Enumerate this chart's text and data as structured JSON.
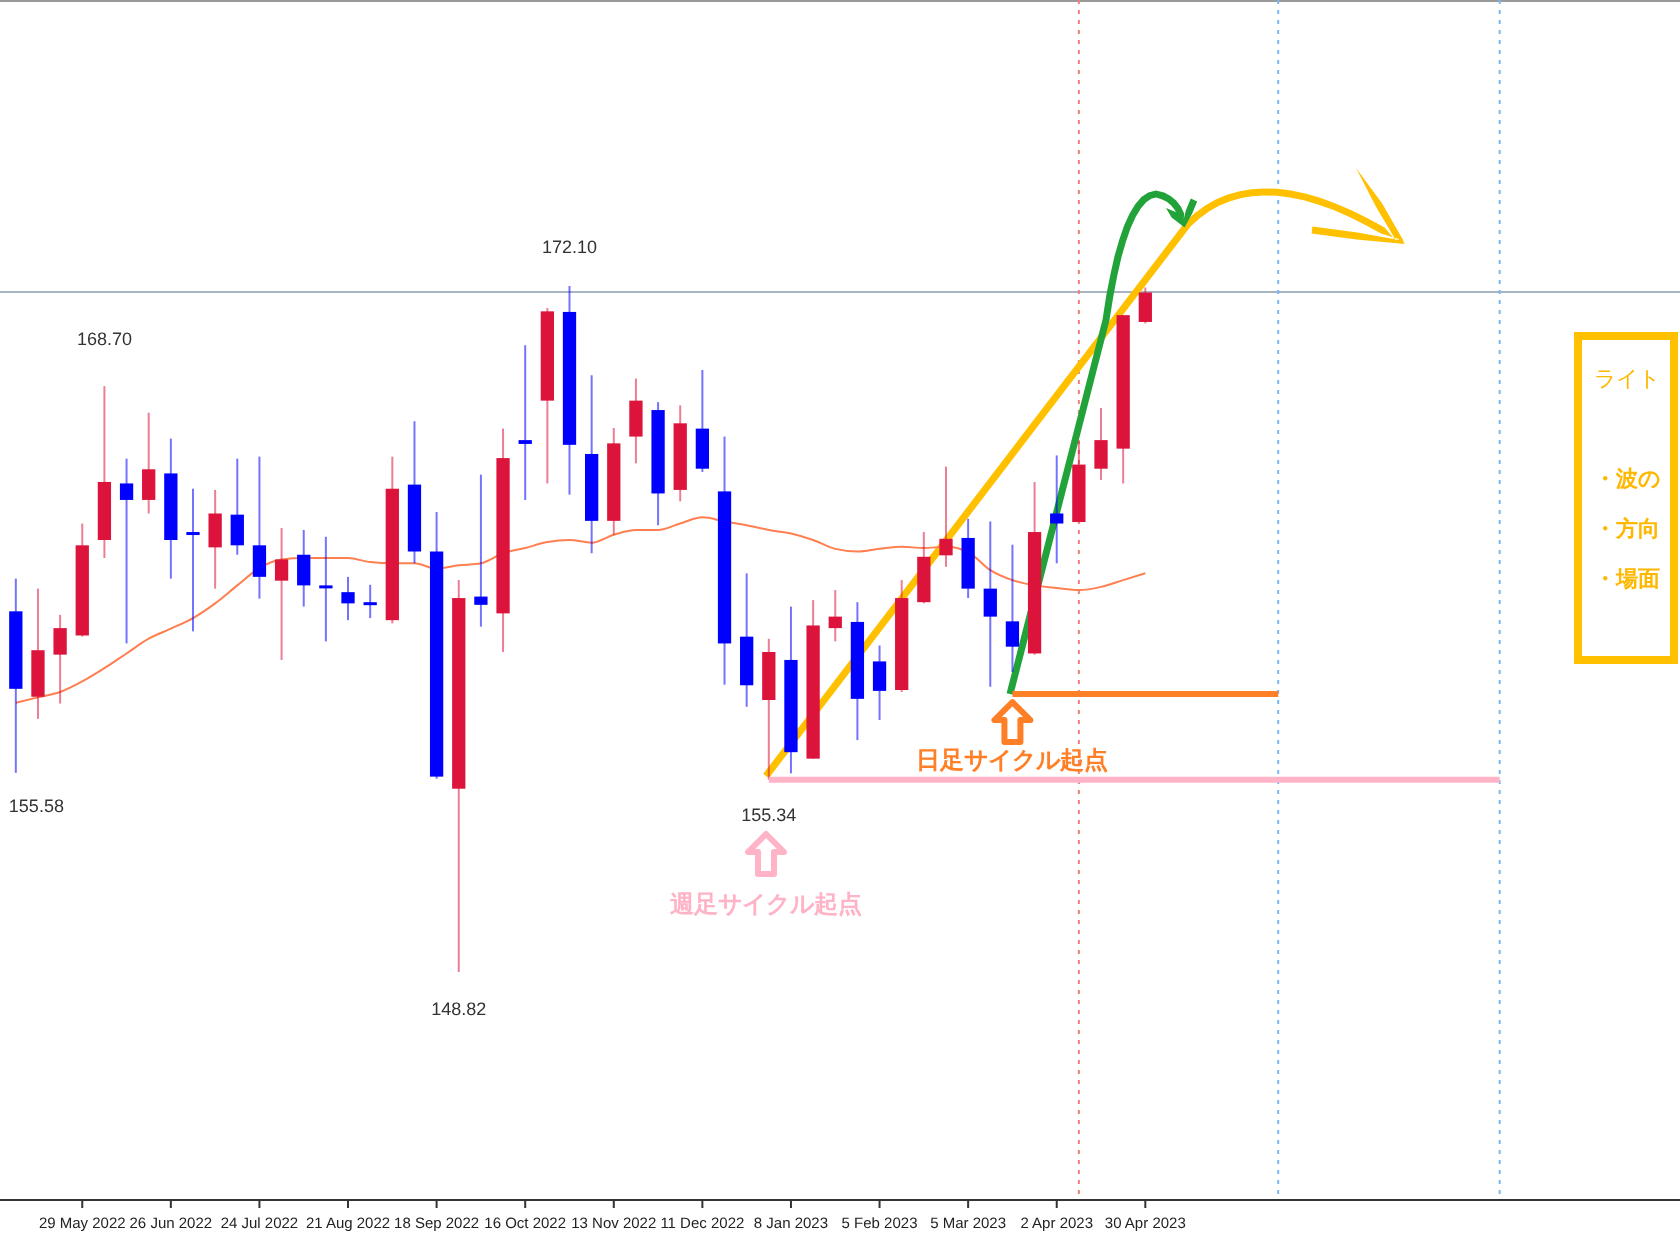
{
  "chart_data": {
    "type": "candlestick",
    "x": [
      "2022-05-08",
      "2022-05-15",
      "2022-05-22",
      "2022-05-29",
      "2022-06-05",
      "2022-06-12",
      "2022-06-19",
      "2022-06-26",
      "2022-07-03",
      "2022-07-10",
      "2022-07-17",
      "2022-07-24",
      "2022-07-31",
      "2022-08-07",
      "2022-08-14",
      "2022-08-21",
      "2022-08-28",
      "2022-09-04",
      "2022-09-11",
      "2022-09-18",
      "2022-09-25",
      "2022-10-02",
      "2022-10-09",
      "2022-10-16",
      "2022-10-23",
      "2022-10-30",
      "2022-11-06",
      "2022-11-13",
      "2022-11-20",
      "2022-11-27",
      "2022-12-04",
      "2022-12-11",
      "2022-12-18",
      "2022-12-25",
      "2023-01-01",
      "2023-01-08",
      "2023-01-15",
      "2023-01-22",
      "2023-01-29",
      "2023-02-05",
      "2023-02-12",
      "2023-02-19",
      "2023-02-26",
      "2023-03-05",
      "2023-03-12",
      "2023-03-19",
      "2023-03-26",
      "2023-04-02",
      "2023-04-09",
      "2023-04-16",
      "2023-04-23",
      "2023-04-30"
    ],
    "ohlc": [
      [
        161.06,
        162.17,
        155.58,
        158.43
      ],
      [
        158.16,
        161.83,
        157.41,
        159.74
      ],
      [
        159.59,
        160.94,
        157.93,
        160.49
      ],
      [
        160.24,
        164.04,
        160.2,
        163.3
      ],
      [
        163.48,
        168.7,
        162.87,
        165.45
      ],
      [
        165.4,
        166.24,
        159.97,
        164.84
      ],
      [
        164.84,
        167.8,
        164.38,
        165.88
      ],
      [
        165.74,
        166.92,
        162.17,
        163.48
      ],
      [
        163.75,
        165.22,
        160.38,
        163.66
      ],
      [
        163.23,
        165.18,
        161.83,
        164.38
      ],
      [
        164.34,
        166.24,
        162.98,
        163.3
      ],
      [
        163.3,
        166.31,
        161.49,
        162.23
      ],
      [
        162.1,
        163.89,
        159.41,
        162.82
      ],
      [
        162.98,
        163.82,
        161.22,
        161.94
      ],
      [
        161.94,
        163.59,
        160.04,
        161.85
      ],
      [
        161.71,
        162.23,
        160.76,
        161.33
      ],
      [
        161.37,
        161.96,
        160.83,
        161.28
      ],
      [
        160.76,
        166.31,
        160.65,
        165.22
      ],
      [
        165.36,
        167.51,
        162.69,
        163.09
      ],
      [
        163.09,
        164.43,
        155.38,
        155.45
      ],
      [
        155.04,
        162.12,
        148.82,
        161.51
      ],
      [
        161.56,
        165.7,
        160.54,
        161.28
      ],
      [
        160.99,
        167.26,
        159.68,
        166.26
      ],
      [
        166.87,
        170.09,
        164.84,
        166.74
      ],
      [
        168.21,
        171.35,
        165.4,
        171.24
      ],
      [
        171.22,
        172.1,
        165.02,
        166.71
      ],
      [
        166.4,
        169.07,
        163.03,
        164.13
      ],
      [
        164.13,
        167.28,
        163.66,
        166.76
      ],
      [
        166.99,
        168.96,
        166.08,
        168.21
      ],
      [
        167.89,
        168.16,
        163.98,
        165.06
      ],
      [
        165.18,
        168.05,
        164.79,
        167.44
      ],
      [
        167.26,
        169.25,
        165.79,
        165.9
      ],
      [
        165.13,
        166.99,
        158.57,
        159.97
      ],
      [
        160.2,
        162.35,
        157.82,
        158.55
      ],
      [
        158.05,
        160.13,
        155.34,
        159.68
      ],
      [
        159.41,
        161.22,
        155.56,
        156.28
      ],
      [
        156.06,
        161.44,
        156.06,
        160.58
      ],
      [
        160.49,
        161.78,
        160.04,
        160.88
      ],
      [
        160.7,
        161.37,
        156.69,
        158.09
      ],
      [
        159.36,
        159.9,
        157.37,
        158.36
      ],
      [
        158.39,
        162.12,
        158.32,
        161.51
      ],
      [
        161.37,
        163.75,
        161.33,
        162.91
      ],
      [
        162.96,
        165.97,
        162.57,
        163.52
      ],
      [
        163.55,
        164.2,
        161.51,
        161.83
      ],
      [
        161.83,
        164.11,
        158.5,
        160.88
      ],
      [
        160.72,
        163.32,
        159.0,
        159.86
      ],
      [
        159.63,
        165.45,
        159.59,
        163.75
      ],
      [
        164.38,
        166.35,
        162.69,
        164.04
      ],
      [
        164.09,
        166.83,
        164.09,
        166.04
      ],
      [
        165.9,
        167.96,
        165.52,
        166.87
      ],
      [
        166.58,
        171.11,
        165.4,
        171.11
      ],
      [
        170.88,
        172.05,
        170.83,
        171.88
      ]
    ],
    "colors": [
      "#0000ff",
      "#dc143c",
      "#dc143c",
      "#dc143c",
      "#dc143c",
      "#0000ff",
      "#dc143c",
      "#0000ff",
      "#0000ff",
      "#dc143c",
      "#0000ff",
      "#0000ff",
      "#dc143c",
      "#0000ff",
      "#0000ff",
      "#0000ff",
      "#0000ff",
      "#dc143c",
      "#0000ff",
      "#0000ff",
      "#dc143c",
      "#0000ff",
      "#dc143c",
      "#0000ff",
      "#dc143c",
      "#0000ff",
      "#0000ff",
      "#dc143c",
      "#dc143c",
      "#0000ff",
      "#dc143c",
      "#0000ff",
      "#0000ff",
      "#0000ff",
      "#dc143c",
      "#0000ff",
      "#dc143c",
      "#dc143c",
      "#0000ff",
      "#0000ff",
      "#dc143c",
      "#dc143c",
      "#dc143c",
      "#0000ff",
      "#0000ff",
      "#0000ff",
      "#dc143c",
      "#0000ff",
      "#dc143c",
      "#dc143c",
      "#dc143c",
      "#dc143c"
    ],
    "series": [
      {
        "type": "line",
        "color": "#ff7f50",
        "values": [
          157.96,
          158.14,
          158.32,
          158.68,
          159.13,
          159.63,
          160.13,
          160.47,
          160.83,
          161.33,
          161.94,
          162.53,
          162.82,
          162.87,
          162.87,
          162.87,
          162.73,
          162.69,
          162.69,
          162.51,
          162.62,
          162.69,
          163.03,
          163.21,
          163.41,
          163.48,
          163.39,
          163.66,
          163.82,
          163.82,
          164.04,
          164.25,
          164.11,
          163.98,
          163.82,
          163.7,
          163.48,
          163.18,
          163.09,
          163.18,
          163.25,
          163.21,
          163.25,
          163.07,
          162.46,
          162.12,
          161.94,
          161.85,
          161.78,
          161.89,
          162.12,
          162.35
        ]
      },
      {
        "type": "line",
        "color": "#ffb3c6",
        "x": [
          "2023-01-01",
          "2023-08-20"
        ],
        "values": [
          155.34,
          155.34
        ]
      },
      {
        "type": "line",
        "color": "#ff7f27",
        "x": [
          "2023-03-19",
          "2023-06-11"
        ],
        "values": [
          158.25,
          158.25
        ]
      }
    ],
    "xlim": [
      "2022-05-03",
      "2023-10-16"
    ],
    "xticks": [
      {
        "value": "2022-05-29",
        "label": "29 May 2022"
      },
      {
        "value": "2022-06-26",
        "label": "26 Jun 2022"
      },
      {
        "value": "2022-07-24",
        "label": "24 Jul 2022"
      },
      {
        "value": "2022-08-21",
        "label": "21 Aug 2022"
      },
      {
        "value": "2022-09-18",
        "label": "18 Sep 2022"
      },
      {
        "value": "2022-10-16",
        "label": "16 Oct 2022"
      },
      {
        "value": "2022-11-13",
        "label": "13 Nov 2022"
      },
      {
        "value": "2022-12-11",
        "label": "11 Dec 2022"
      },
      {
        "value": "2023-01-08",
        "label": "8 Jan 2023"
      },
      {
        "value": "2023-02-05",
        "label": "5 Feb 2023"
      },
      {
        "value": "2023-03-05",
        "label": "5 Mar 2023"
      },
      {
        "value": "2023-04-02",
        "label": "2 Apr 2023"
      },
      {
        "value": "2023-04-30",
        "label": "30 Apr 2023"
      }
    ],
    "tick_labels": "x",
    "ref_lines": [
      {
        "axis": "y",
        "value": 171.9,
        "color": "#a8b4c4",
        "line_style": "solid"
      },
      {
        "axis": "x",
        "value": "2023-04-09",
        "color": "#f08080",
        "line_style": "dotted"
      },
      {
        "axis": "x",
        "value": "2023-06-11",
        "color": "#7ab8f5",
        "line_style": "dotted"
      },
      {
        "axis": "x",
        "value": "2023-08-20",
        "color": "#7ab8f5",
        "line_style": "dotted"
      }
    ],
    "annotations": [
      {
        "text": "168.70",
        "x": "2022-06-05",
        "y": 168.7
      },
      {
        "text": "172.10",
        "x": "2022-10-30",
        "y": 172.1
      },
      {
        "text": "155.58",
        "x": "2022-05-08",
        "y": 155.58
      },
      {
        "text": "148.82",
        "x": "2022-09-25",
        "y": 148.82
      },
      {
        "text": "155.34",
        "x": "2023-01-01",
        "y": 155.34
      },
      "週足サイクル起点",
      {
        "text": "日足サイクル起点",
        "x": "2023-03-19",
        "y": 158.25
      },
      "ライト",
      "・波の",
      "・方向",
      "・場面"
    ]
  }
}
